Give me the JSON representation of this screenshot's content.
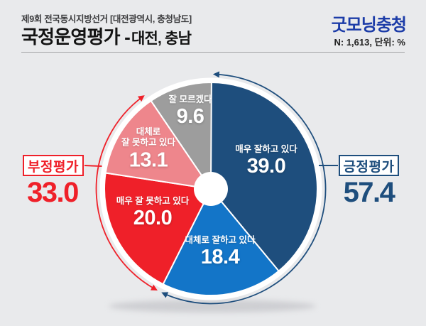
{
  "header": {
    "subtitle": "제9회 전국동시지방선거 [대전광역시, 충청남도]",
    "title_main": "국정운영평가 -",
    "title_region": "대전, 충남",
    "logo": "굿모닝충청",
    "sample_note": "N: 1,613, 단위: %"
  },
  "chart_data": {
    "type": "pie",
    "title": "국정운영평가 - 대전, 충남",
    "unit": "%",
    "sample_n": "1,613",
    "start_angle_deg": 0,
    "direction": "clockwise",
    "donut_hole": true,
    "slices": [
      {
        "label": "매우 잘하고 있다",
        "value": 39.0,
        "display": "39.0",
        "color": "#1e4e7d",
        "group": "긍정평가"
      },
      {
        "label": "대체로 잘하고 있다",
        "value": 18.4,
        "display": "18.4",
        "color": "#1375c8",
        "group": "긍정평가"
      },
      {
        "label": "매우 잘 못하고 있다",
        "value": 20.0,
        "display": "20.0",
        "color": "#ef2029",
        "group": "부정평가"
      },
      {
        "label": "대체로\n잘 못하고 있다",
        "value": 13.1,
        "display": "13.1",
        "color": "#ee868c",
        "group": "부정평가"
      },
      {
        "label": "잘 모르겠다",
        "value": 9.6,
        "display": "9.6",
        "color": "#9d9d9d",
        "group": null
      }
    ],
    "groups": [
      {
        "label": "긍정평가",
        "value": 57.4,
        "display": "57.4",
        "color": "#1e4e7d",
        "side": "right"
      },
      {
        "label": "부정평가",
        "value": 33.0,
        "display": "33.0",
        "color": "#ef2029",
        "side": "left"
      }
    ]
  }
}
